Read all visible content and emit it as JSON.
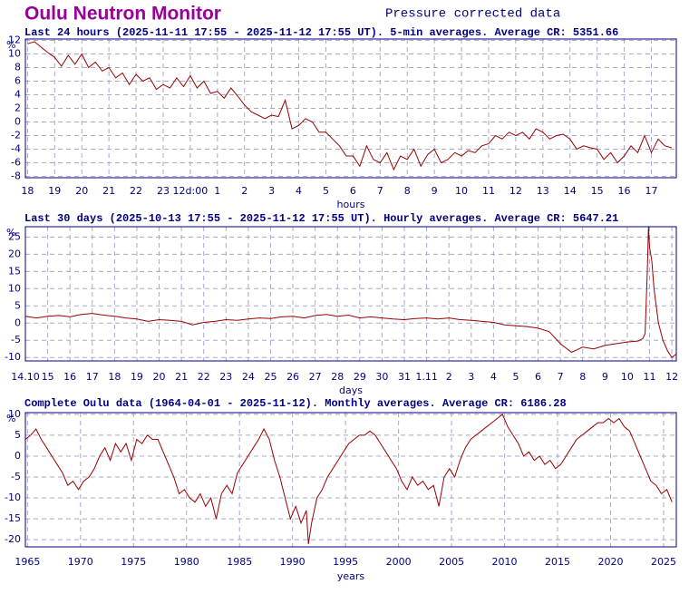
{
  "header": {
    "title": "Oulu Neutron Monitor",
    "subtitle": "Pressure corrected data"
  },
  "chart_data": [
    {
      "type": "line",
      "title": "Last 24 hours (2025-11-11 17:55 - 2025-11-12 17:55 UT). 5-min averages. Average CR: 5351.66",
      "ylabel": "%",
      "xlabel": "hours",
      "color": "#990000",
      "grid": true,
      "xlim": [
        -0.08,
        23.92
      ],
      "ylim": [
        -8.2,
        12.2
      ],
      "yticks": [
        12,
        10,
        8,
        6,
        4,
        2,
        0,
        -2,
        -4,
        -6,
        -8
      ],
      "xticks": [
        {
          "value": 0,
          "label": "18"
        },
        {
          "value": 1,
          "label": "19"
        },
        {
          "value": 2,
          "label": "20"
        },
        {
          "value": 3,
          "label": "21"
        },
        {
          "value": 4,
          "label": "22"
        },
        {
          "value": 5,
          "label": "23"
        },
        {
          "value": 6,
          "label": "12d:00"
        },
        {
          "value": 7,
          "label": "1"
        },
        {
          "value": 8,
          "label": "2"
        },
        {
          "value": 9,
          "label": "3"
        },
        {
          "value": 10,
          "label": "4"
        },
        {
          "value": 11,
          "label": "5"
        },
        {
          "value": 12,
          "label": "6"
        },
        {
          "value": 13,
          "label": "7"
        },
        {
          "value": 14,
          "label": "8"
        },
        {
          "value": 15,
          "label": "9"
        },
        {
          "value": 16,
          "label": "10"
        },
        {
          "value": 17,
          "label": "11"
        },
        {
          "value": 18,
          "label": "12"
        },
        {
          "value": 19,
          "label": "13"
        },
        {
          "value": 20,
          "label": "14"
        },
        {
          "value": 21,
          "label": "15"
        },
        {
          "value": 22,
          "label": "16"
        },
        {
          "value": 23,
          "label": "17"
        }
      ],
      "x": [
        0,
        0.25,
        0.5,
        0.75,
        1,
        1.25,
        1.5,
        1.75,
        2,
        2.25,
        2.5,
        2.75,
        3,
        3.25,
        3.5,
        3.75,
        4,
        4.25,
        4.5,
        4.75,
        5,
        5.25,
        5.5,
        5.75,
        6,
        6.25,
        6.5,
        6.75,
        7,
        7.25,
        7.5,
        7.75,
        8,
        8.25,
        8.5,
        8.75,
        9,
        9.25,
        9.5,
        9.75,
        10,
        10.25,
        10.5,
        10.75,
        11,
        11.25,
        11.5,
        11.75,
        12,
        12.25,
        12.5,
        12.75,
        13,
        13.25,
        13.5,
        13.75,
        14,
        14.25,
        14.5,
        14.75,
        15,
        15.25,
        15.5,
        15.75,
        16,
        16.25,
        16.5,
        16.75,
        17,
        17.25,
        17.5,
        17.75,
        18,
        18.25,
        18.5,
        18.75,
        19,
        19.25,
        19.5,
        19.75,
        20,
        20.25,
        20.5,
        20.75,
        21,
        21.25,
        21.5,
        21.75,
        22,
        22.25,
        22.5,
        22.75,
        23,
        23.25,
        23.5,
        23.75
      ],
      "values": [
        11.5,
        11.8,
        11,
        10.2,
        9.5,
        8.2,
        9.8,
        8.5,
        10,
        8,
        8.8,
        7.5,
        8,
        6.5,
        7.2,
        5.5,
        7,
        6,
        6.5,
        4.8,
        5.5,
        5,
        6.5,
        5.2,
        6.8,
        5,
        6,
        4.2,
        4.5,
        3.5,
        5,
        3.8,
        2.5,
        1.5,
        1,
        0.5,
        1,
        0.8,
        3.2,
        -1,
        -0.5,
        0.5,
        0,
        -1.5,
        -1.5,
        -2.5,
        -3.5,
        -5,
        -5,
        -6.5,
        -3.5,
        -5.5,
        -6,
        -4.5,
        -7,
        -5,
        -5.5,
        -4,
        -6.5,
        -4.8,
        -4,
        -6,
        -5.5,
        -4.5,
        -5,
        -4.2,
        -4.5,
        -3.5,
        -3.2,
        -2,
        -2.5,
        -1.5,
        -2,
        -1.5,
        -2.5,
        -1,
        -1.5,
        -2.5,
        -2,
        -1.8,
        -2.5,
        -4,
        -3.5,
        -3.8,
        -4,
        -5.5,
        -4.5,
        -6,
        -5,
        -3.5,
        -4.5,
        -2,
        -4.5,
        -2.5,
        -3.5,
        -3.8
      ]
    },
    {
      "type": "line",
      "title": "Last 30 days (2025-10-13 17:55 - 2025-11-12 17:55 UT). Hourly averages. Average CR: 5647.21",
      "ylabel": "%",
      "xlabel": "days",
      "color": "#990000",
      "grid": true,
      "xlim": [
        0,
        29.2
      ],
      "ylim": [
        -11,
        28
      ],
      "yticks": [
        25,
        20,
        15,
        10,
        5,
        0,
        -5,
        -10
      ],
      "xticks": [
        {
          "value": 0,
          "label": "14.10"
        },
        {
          "value": 1,
          "label": "15"
        },
        {
          "value": 2,
          "label": "16"
        },
        {
          "value": 3,
          "label": "17"
        },
        {
          "value": 4,
          "label": "18"
        },
        {
          "value": 5,
          "label": "19"
        },
        {
          "value": 6,
          "label": "20"
        },
        {
          "value": 7,
          "label": "21"
        },
        {
          "value": 8,
          "label": "22"
        },
        {
          "value": 9,
          "label": "23"
        },
        {
          "value": 10,
          "label": "24"
        },
        {
          "value": 11,
          "label": "25"
        },
        {
          "value": 12,
          "label": "26"
        },
        {
          "value": 13,
          "label": "27"
        },
        {
          "value": 14,
          "label": "28"
        },
        {
          "value": 15,
          "label": "29"
        },
        {
          "value": 16,
          "label": "30"
        },
        {
          "value": 17,
          "label": "31"
        },
        {
          "value": 18,
          "label": "1.11"
        },
        {
          "value": 19,
          "label": "2"
        },
        {
          "value": 20,
          "label": "3"
        },
        {
          "value": 21,
          "label": "4"
        },
        {
          "value": 22,
          "label": "5"
        },
        {
          "value": 23,
          "label": "6"
        },
        {
          "value": 24,
          "label": "7"
        },
        {
          "value": 25,
          "label": "8"
        },
        {
          "value": 26,
          "label": "9"
        },
        {
          "value": 27,
          "label": "10"
        },
        {
          "value": 28,
          "label": "11"
        },
        {
          "value": 29,
          "label": "12"
        }
      ],
      "x": [
        0,
        0.5,
        1,
        1.5,
        2,
        2.5,
        3,
        3.5,
        4,
        4.5,
        5,
        5.5,
        6,
        6.5,
        7,
        7.5,
        8,
        8.5,
        9,
        9.5,
        10,
        10.5,
        11,
        11.5,
        12,
        12.5,
        13,
        13.5,
        14,
        14.5,
        15,
        15.5,
        16,
        16.5,
        17,
        17.5,
        18,
        18.5,
        19,
        19.5,
        20,
        20.5,
        21,
        21.5,
        22,
        22.5,
        23,
        23.5,
        24,
        24.5,
        25,
        25.5,
        26,
        26.5,
        27,
        27.5,
        27.7,
        27.8,
        27.9,
        27.95,
        28,
        28.1,
        28.2,
        28.4,
        28.6,
        28.8,
        29,
        29.2
      ],
      "values": [
        2,
        1.5,
        2,
        2.2,
        1.8,
        2.5,
        2.8,
        2.3,
        2,
        1.5,
        1.2,
        0.5,
        1,
        0.8,
        0.5,
        -0.5,
        0.2,
        0.5,
        1,
        0.8,
        1.2,
        1.5,
        1.3,
        1.8,
        2,
        1.5,
        2.2,
        2.5,
        2,
        2.3,
        1.5,
        1.8,
        1.5,
        1.2,
        1,
        1.3,
        1.5,
        1.2,
        1.5,
        1,
        0.8,
        0.5,
        0.2,
        -0.5,
        -0.8,
        -1,
        -1.5,
        -2.5,
        -6,
        -8.5,
        -7,
        -7.5,
        -6.5,
        -6,
        -5.5,
        -5.2,
        -4.5,
        -3,
        15,
        28,
        22,
        18,
        10,
        0,
        -5,
        -8,
        -10,
        -9
      ]
    },
    {
      "type": "line",
      "title": "Complete Oulu data (1964-04-01 - 2025-11-12). Monthly averages. Average CR: 6186.28",
      "ylabel": "%",
      "xlabel": "years",
      "color": "#990000",
      "grid": true,
      "xlim": [
        1964.8,
        2026.2
      ],
      "ylim": [
        -21.7,
        10.4
      ],
      "yticks": [
        10,
        5,
        0,
        -5,
        -10,
        -15,
        -20
      ],
      "xticks": [
        1965,
        1970,
        1975,
        1980,
        1985,
        1990,
        1995,
        2000,
        2005,
        2010,
        2015,
        2020,
        2025
      ],
      "x": [
        1964.8,
        1965.3,
        1965.8,
        1966.3,
        1966.8,
        1967.3,
        1967.8,
        1968.3,
        1968.8,
        1969.3,
        1969.8,
        1970.3,
        1970.8,
        1971.3,
        1971.8,
        1972.3,
        1972.8,
        1973.3,
        1973.8,
        1974.3,
        1974.8,
        1975.3,
        1975.8,
        1976.3,
        1976.8,
        1977.3,
        1977.8,
        1978.3,
        1978.8,
        1979.3,
        1979.8,
        1980.3,
        1980.8,
        1981.3,
        1981.8,
        1982.3,
        1982.8,
        1983.3,
        1983.8,
        1984.3,
        1984.8,
        1985.3,
        1985.8,
        1986.3,
        1986.8,
        1987.3,
        1987.8,
        1988.3,
        1988.8,
        1989.3,
        1989.8,
        1990.3,
        1990.8,
        1991.3,
        1991.5,
        1991.8,
        1992.3,
        1992.8,
        1993.3,
        1993.8,
        1994.3,
        1994.8,
        1995.3,
        1995.8,
        1996.3,
        1996.8,
        1997.3,
        1997.8,
        1998.3,
        1998.8,
        1999.3,
        1999.8,
        2000.3,
        2000.8,
        2001.3,
        2001.8,
        2002.3,
        2002.8,
        2003.3,
        2003.8,
        2004.3,
        2004.8,
        2005.3,
        2005.8,
        2006.3,
        2006.8,
        2007.3,
        2007.8,
        2008.3,
        2008.8,
        2009.3,
        2009.8,
        2010.3,
        2010.8,
        2011.3,
        2011.8,
        2012.3,
        2012.8,
        2013.3,
        2013.8,
        2014.3,
        2014.8,
        2015.3,
        2015.8,
        2016.3,
        2016.8,
        2017.3,
        2017.8,
        2018.3,
        2018.8,
        2019.3,
        2019.8,
        2020.3,
        2020.8,
        2021.3,
        2021.8,
        2022.3,
        2022.8,
        2023.3,
        2023.8,
        2024.3,
        2024.8,
        2025.3,
        2025.8
      ],
      "values": [
        4,
        5,
        6.5,
        4,
        2,
        0,
        -2,
        -4,
        -7,
        -6,
        -8,
        -6,
        -5,
        -3,
        0,
        2,
        -1,
        3,
        1,
        3,
        -1,
        4,
        3,
        5,
        4,
        4,
        1,
        -2,
        -5,
        -9,
        -8,
        -10,
        -11,
        -9,
        -12,
        -10,
        -15,
        -9,
        -7,
        -9,
        -4,
        -2,
        0,
        2,
        4,
        6.5,
        4,
        -1,
        -5,
        -10,
        -15,
        -12,
        -16,
        -13,
        -21,
        -16,
        -10,
        -8,
        -5,
        -3,
        -1,
        1,
        3,
        4,
        5,
        5,
        6,
        5,
        3,
        1,
        -1,
        -3,
        -6,
        -8,
        -5,
        -7,
        -6,
        -8,
        -7,
        -12,
        -5,
        -3,
        -5,
        -1,
        2,
        4,
        5,
        6,
        7,
        8,
        9,
        10,
        7,
        5,
        3,
        0,
        1,
        -1,
        0,
        -2,
        -1,
        -3,
        -2,
        0,
        2,
        4,
        5,
        6,
        7,
        8,
        8,
        9,
        8,
        9,
        7,
        6,
        3,
        0,
        -3,
        -6,
        -7,
        -9,
        -8,
        -11
      ]
    }
  ]
}
